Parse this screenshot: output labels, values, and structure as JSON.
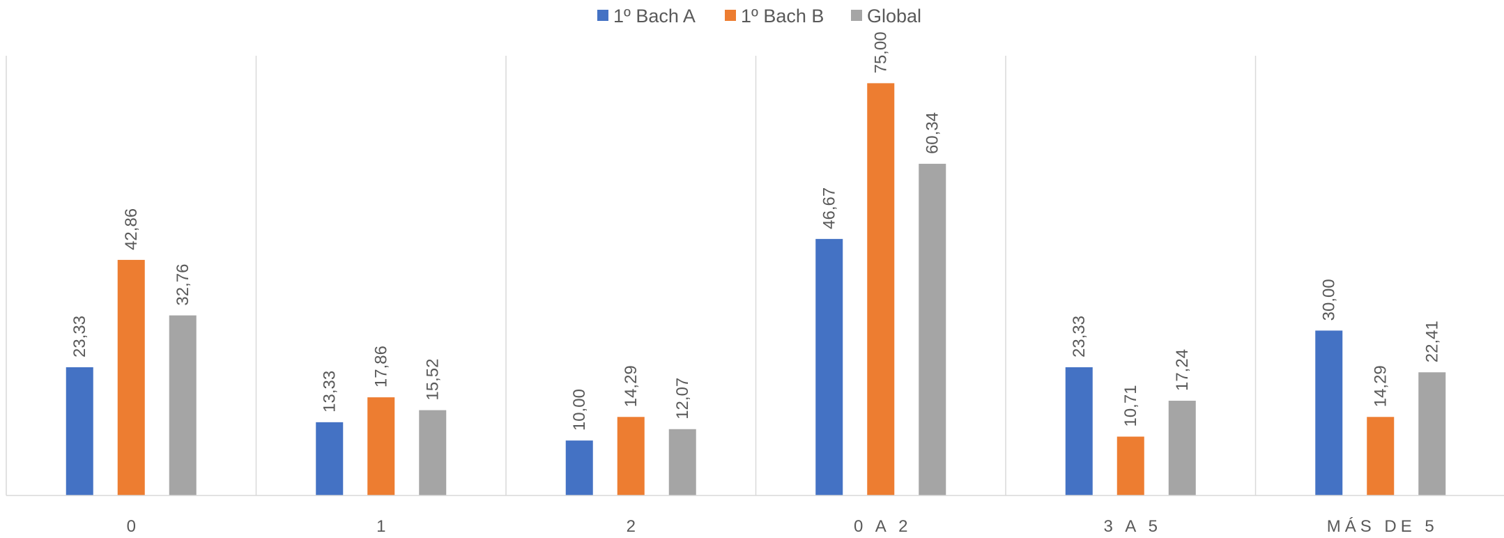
{
  "chart_data": {
    "type": "bar",
    "categories": [
      "0",
      "1",
      "2",
      "0 A 2",
      "3 A 5",
      "MÁS DE 5"
    ],
    "series": [
      {
        "name": "1º Bach A",
        "color": "#4472C4",
        "values": [
          23.33,
          13.33,
          10.0,
          46.67,
          23.33,
          30.0
        ]
      },
      {
        "name": "1º Bach B",
        "color": "#ED7D31",
        "values": [
          42.86,
          17.86,
          14.29,
          75.0,
          10.71,
          14.29
        ]
      },
      {
        "name": "Global",
        "color": "#A5A5A5",
        "values": [
          32.76,
          15.52,
          12.07,
          60.34,
          17.24,
          22.41
        ]
      }
    ],
    "data_labels": [
      [
        "23,33",
        "13,33",
        "10,00",
        "46,67",
        "23,33",
        "30,00"
      ],
      [
        "42,86",
        "17,86",
        "14,29",
        "75,00",
        "10,71",
        "14,29"
      ],
      [
        "32,76",
        "15,52",
        "12,07",
        "60,34",
        "17,24",
        "22,41"
      ]
    ],
    "ylim": [
      0,
      80
    ],
    "legend_position": "top",
    "grid": "vertical category separators",
    "title": "",
    "xlabel": "",
    "ylabel": ""
  }
}
